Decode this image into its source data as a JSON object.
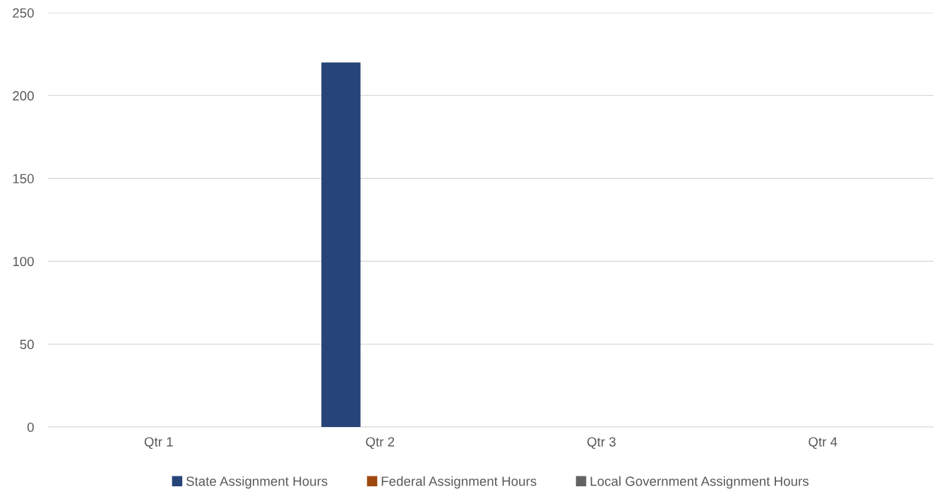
{
  "chart_data": {
    "type": "bar",
    "categories": [
      "Qtr 1",
      "Qtr 2",
      "Qtr 3",
      "Qtr 4"
    ],
    "series": [
      {
        "name": "State Assignment Hours",
        "color": "#264478",
        "values": [
          0,
          220,
          0,
          0
        ]
      },
      {
        "name": "Federal Assignment Hours",
        "color": "#9e480e",
        "values": [
          0,
          0,
          0,
          0
        ]
      },
      {
        "name": "Local Government Assignment Hours",
        "color": "#636363",
        "values": [
          0,
          0,
          0,
          0
        ]
      }
    ],
    "ylim": [
      0,
      250
    ],
    "yticks": [
      0,
      50,
      100,
      150,
      200,
      250
    ],
    "grid": "y",
    "legend": "bottom"
  }
}
